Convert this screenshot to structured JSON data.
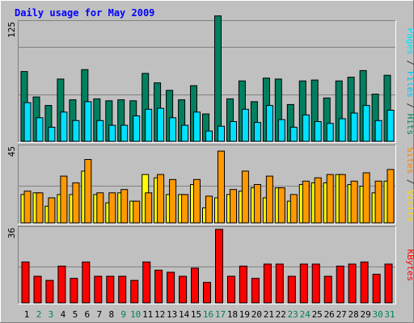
{
  "chart_data": {
    "type": "bar",
    "title": "Daily usage for May 2009",
    "categories": [
      "1",
      "2",
      "3",
      "4",
      "5",
      "6",
      "7",
      "8",
      "9",
      "10",
      "11",
      "12",
      "13",
      "14",
      "15",
      "16",
      "17",
      "18",
      "19",
      "20",
      "21",
      "22",
      "23",
      "24",
      "25",
      "26",
      "27",
      "28",
      "29",
      "30",
      "31"
    ],
    "weekend_days": [
      2,
      3,
      9,
      10,
      16,
      17,
      23,
      24,
      30,
      31
    ],
    "panels": [
      {
        "name": "hits-files-pages",
        "ymax": 125,
        "ymax_label": "125",
        "right_label": [
          "Pages",
          " / ",
          "Files",
          " / ",
          "Hits"
        ],
        "right_label_colors": [
          "#00e0ff",
          "#333333",
          "#00c0ff",
          "#333333",
          "#008060"
        ],
        "series": [
          {
            "name": "Hits",
            "color": "#008060",
            "values": [
              74,
              47,
              38,
              66,
              44,
              76,
              45,
              43,
              44,
              43,
              72,
              62,
              54,
              44,
              59,
              29,
              133,
              45,
              64,
              42,
              67,
              66,
              39,
              64,
              65,
              46,
              64,
              68,
              75,
              50,
              70
            ]
          },
          {
            "name": "Files",
            "color": "#00e0ff",
            "values": [
              41,
              25,
              15,
              31,
              22,
              42,
              22,
              17,
              17,
              27,
              34,
              35,
              25,
              17,
              31,
              11,
              16,
              21,
              34,
              20,
              38,
              23,
              15,
              28,
              21,
              19,
              24,
              30,
              38,
              22,
              33
            ]
          }
        ]
      },
      {
        "name": "visits-sites",
        "ymax": 45,
        "ymax_label": "45",
        "right_label": [
          "Sites",
          " / ",
          "Visits"
        ],
        "right_label_colors": [
          "#ff8000",
          "#333333",
          "#ffd700"
        ],
        "series": [
          {
            "name": "Visits",
            "color": "#ffff00",
            "values": [
              17,
              18,
              10,
              17,
              17,
              31,
              17,
              12,
              18,
              13,
              29,
              27,
              17,
              17,
              23,
              9,
              15,
              17,
              19,
              21,
              15,
              21,
              13,
              23,
              24,
              24,
              29,
              23,
              22,
              18,
              25
            ]
          },
          {
            "name": "Sites",
            "color": "#ff9900",
            "values": [
              19,
              18,
              15,
              28,
              24,
              38,
              18,
              18,
              20,
              13,
              18,
              29,
              26,
              17,
              26,
              16,
              43,
              20,
              31,
              23,
              28,
              21,
              17,
              25,
              27,
              29,
              29,
              25,
              30,
              25,
              32
            ]
          }
        ]
      },
      {
        "name": "kbytes",
        "ymax": 36,
        "ymax_label": "36",
        "right_label": [
          "KBytes"
        ],
        "right_label_colors": [
          "#ff0000"
        ],
        "series": [
          {
            "name": "KBytes",
            "color": "#ff0000",
            "values": [
              20,
              13,
              11,
              18,
              12,
              20,
              13,
              13,
              13,
              11,
              20,
              16,
              15,
              13,
              17,
              10,
              36,
              13,
              18,
              12,
              19,
              19,
              13,
              19,
              19,
              13,
              18,
              19,
              20,
              14,
              19
            ]
          }
        ]
      }
    ]
  },
  "colors": {
    "page_bg": "#c0c0c0",
    "plot_bg": "#c0c0c0",
    "grid": "#808080",
    "title": "#0000ff",
    "axis_text": "#000000",
    "weekday_label": "#000000",
    "weekend_label": "#00805c"
  }
}
